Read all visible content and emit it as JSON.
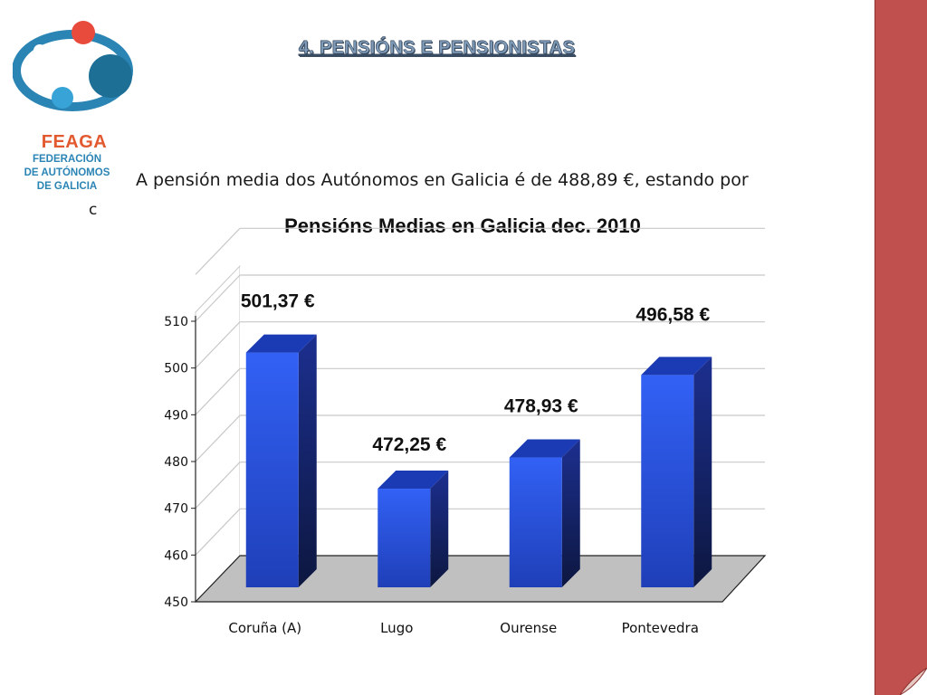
{
  "logo": {
    "name": "FEAGA",
    "line1": "FEDERACIÓN",
    "line2": "DE AUTÓNOMOS",
    "line3": "DE GALICIA"
  },
  "header": {
    "title": "4. PENSIÓNS E PENSIONISTAS"
  },
  "body": {
    "text": "A pensión media dos Autónomos en Galicia é de 488,89 €, estando por",
    "fragment": "c"
  },
  "colors": {
    "bar_front": "#2d57ea",
    "bar_side": "#1a2e8a",
    "floor": "#c0c0c0",
    "right_bar": "#c0504d"
  },
  "chart_data": {
    "type": "bar",
    "title": "Pensións Medias en Galicia dec. 2010",
    "categories": [
      "Coruña (A)",
      "Lugo",
      "Ourense",
      "Pontevedra"
    ],
    "values": [
      501.37,
      472.25,
      478.93,
      496.58
    ],
    "data_labels": [
      "501,37 €",
      "472,25 €",
      "478,93 €",
      "496,58 €"
    ],
    "ylim": [
      450,
      510
    ],
    "yticks": [
      450,
      460,
      470,
      480,
      490,
      500,
      510
    ],
    "xlabel": "",
    "ylabel": "",
    "grid": true,
    "style": "3d"
  }
}
